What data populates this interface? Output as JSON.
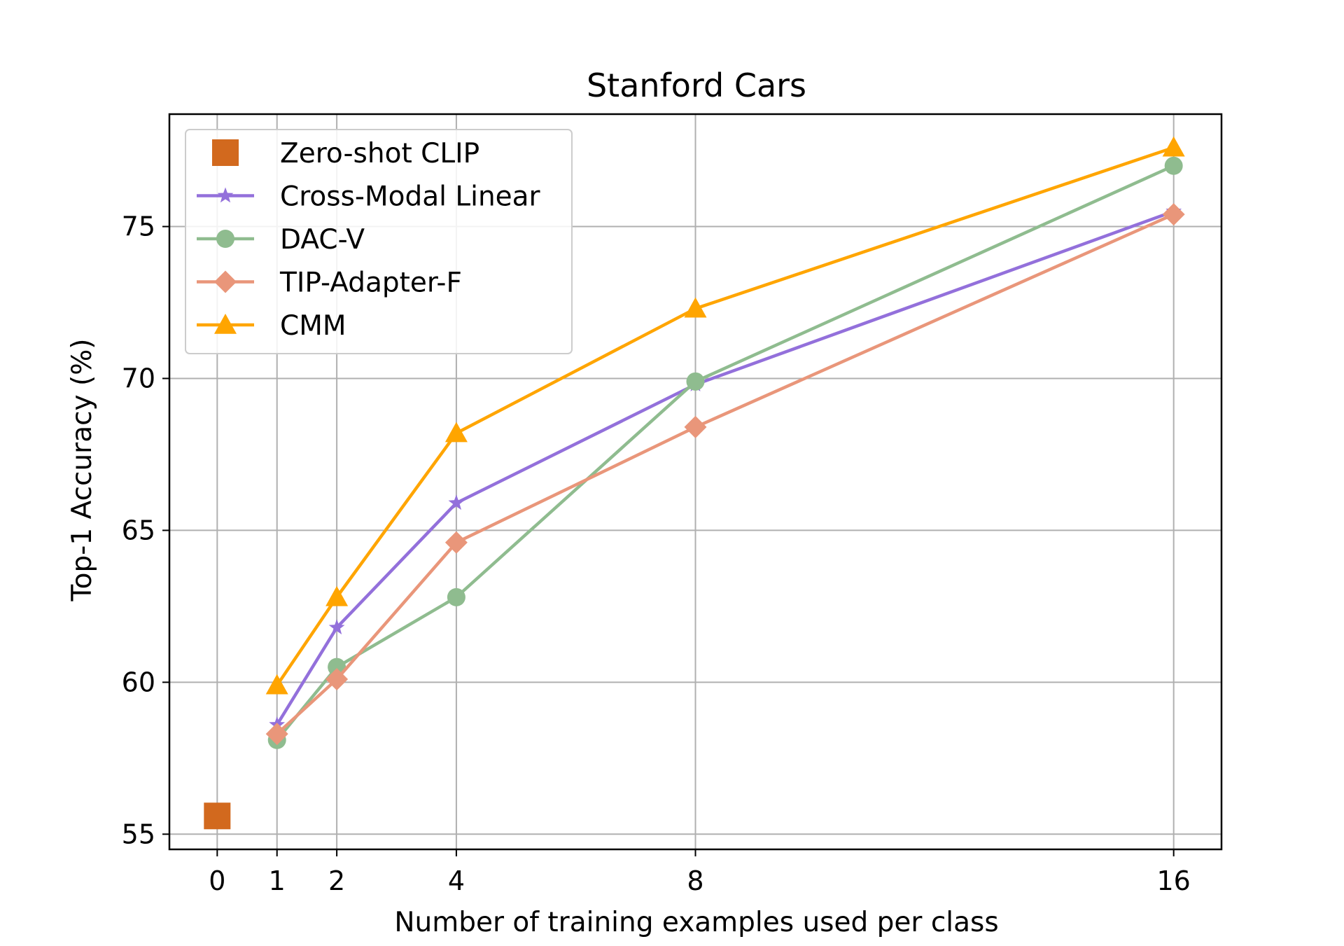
{
  "chart_data": {
    "type": "line",
    "title": "Stanford Cars",
    "xlabel": "Number of training examples used per class",
    "ylabel": "Top-1 Accuracy (%)",
    "xlim": [
      -0.8,
      16.8
    ],
    "ylim": [
      54.5,
      78.7
    ],
    "xticks": [
      0,
      1,
      2,
      4,
      8,
      16
    ],
    "xtick_labels": [
      "0",
      "1",
      "2",
      "4",
      "8",
      "16"
    ],
    "yticks": [
      55,
      60,
      65,
      70,
      75
    ],
    "ytick_labels": [
      "55",
      "60",
      "65",
      "70",
      "75"
    ],
    "grid": true,
    "legend_position": "top-left",
    "series": [
      {
        "name": "Zero-shot CLIP",
        "color": "#d2691e",
        "marker": "square",
        "line": false,
        "x": [
          0
        ],
        "values": [
          55.6
        ]
      },
      {
        "name": "Cross-Modal Linear",
        "color": "#9370db",
        "marker": "star",
        "line": true,
        "x": [
          1,
          2,
          4,
          8,
          16
        ],
        "values": [
          58.6,
          61.8,
          65.9,
          69.8,
          75.5
        ]
      },
      {
        "name": "DAC-V",
        "color": "#8fbc8f",
        "marker": "circle",
        "line": true,
        "x": [
          1,
          2,
          4,
          8,
          16
        ],
        "values": [
          58.1,
          60.5,
          62.8,
          69.9,
          77.0
        ]
      },
      {
        "name": "TIP-Adapter-F",
        "color": "#e9967a",
        "marker": "diamond",
        "line": true,
        "x": [
          1,
          2,
          4,
          8,
          16
        ],
        "values": [
          58.3,
          60.1,
          64.6,
          68.4,
          75.4
        ]
      },
      {
        "name": "CMM",
        "color": "#ffa500",
        "marker": "triangle",
        "line": true,
        "x": [
          1,
          2,
          4,
          8,
          16
        ],
        "values": [
          59.9,
          62.8,
          68.2,
          72.3,
          77.6
        ]
      }
    ]
  }
}
